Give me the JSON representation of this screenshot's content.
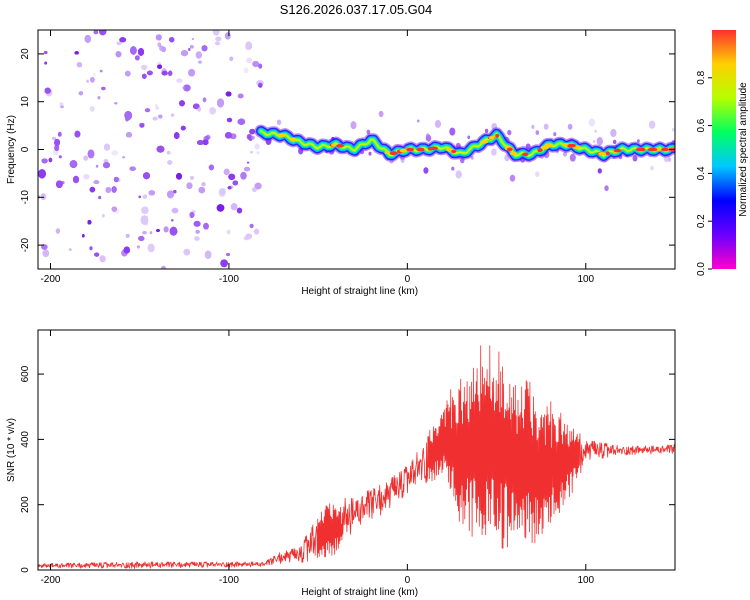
{
  "figure_title": "S126.2026.037.17.05.G04",
  "chart_data": [
    {
      "type": "heatmap",
      "name": "spectrogram",
      "xlabel": "Height of straight line (km)",
      "ylabel": "Frequency (Hz)",
      "xlim": [
        -207,
        150
      ],
      "ylim": [
        -25,
        25
      ],
      "xticks": [
        -200,
        -100,
        0,
        100
      ],
      "yticks": [
        -20,
        -10,
        0,
        10,
        20
      ],
      "noise_region_x": [
        -207,
        -82
      ],
      "ridge": {
        "x": [
          -82,
          -70,
          -60,
          -50,
          -40,
          -30,
          -20,
          -10,
          0,
          10,
          20,
          30,
          40,
          50,
          60,
          70,
          80,
          90,
          100,
          110,
          120,
          130,
          140,
          150
        ],
        "freq": [
          3.5,
          3,
          1.5,
          0.5,
          1,
          0,
          2,
          -1,
          0,
          0,
          0.5,
          -1,
          1,
          3,
          -1,
          -1,
          1,
          1,
          0,
          -1,
          0,
          0,
          0,
          0
        ]
      },
      "colorbar": {
        "label": "Normalized spectral amplitude",
        "range": [
          0,
          1
        ],
        "ticks": [
          "0.0",
          "0.2",
          "0.4",
          "0.6",
          "0.8"
        ],
        "colors": [
          "#ff00cc",
          "#6a00ff",
          "#0000ff",
          "#00c8ff",
          "#00ff60",
          "#b4ff00",
          "#ffd000",
          "#ff3030"
        ]
      }
    },
    {
      "type": "line",
      "name": "snr",
      "xlabel": "Height of straight line (km)",
      "ylabel": "SNR (10 * v/v)",
      "xlim": [
        -207,
        150
      ],
      "ylim": [
        0,
        735
      ],
      "xticks": [
        -200,
        -100,
        0,
        100
      ],
      "yticks": [
        0,
        200,
        400,
        600
      ],
      "color": "#f03030",
      "envelope": {
        "x": [
          -207,
          -150,
          -80,
          -70,
          -60,
          -50,
          -40,
          -30,
          -20,
          -10,
          0,
          10,
          20,
          30,
          40,
          50,
          60,
          70,
          80,
          90,
          100,
          110,
          120,
          130,
          140,
          150
        ],
        "lower": [
          5,
          5,
          10,
          20,
          20,
          20,
          50,
          120,
          150,
          180,
          230,
          260,
          290,
          100,
          80,
          50,
          60,
          80,
          100,
          200,
          330,
          340,
          350,
          355,
          355,
          355
        ],
        "upper": [
          20,
          25,
          25,
          60,
          70,
          180,
          220,
          220,
          250,
          280,
          320,
          400,
          520,
          600,
          690,
          720,
          600,
          580,
          520,
          470,
          400,
          390,
          380,
          380,
          380,
          385
        ]
      }
    }
  ]
}
